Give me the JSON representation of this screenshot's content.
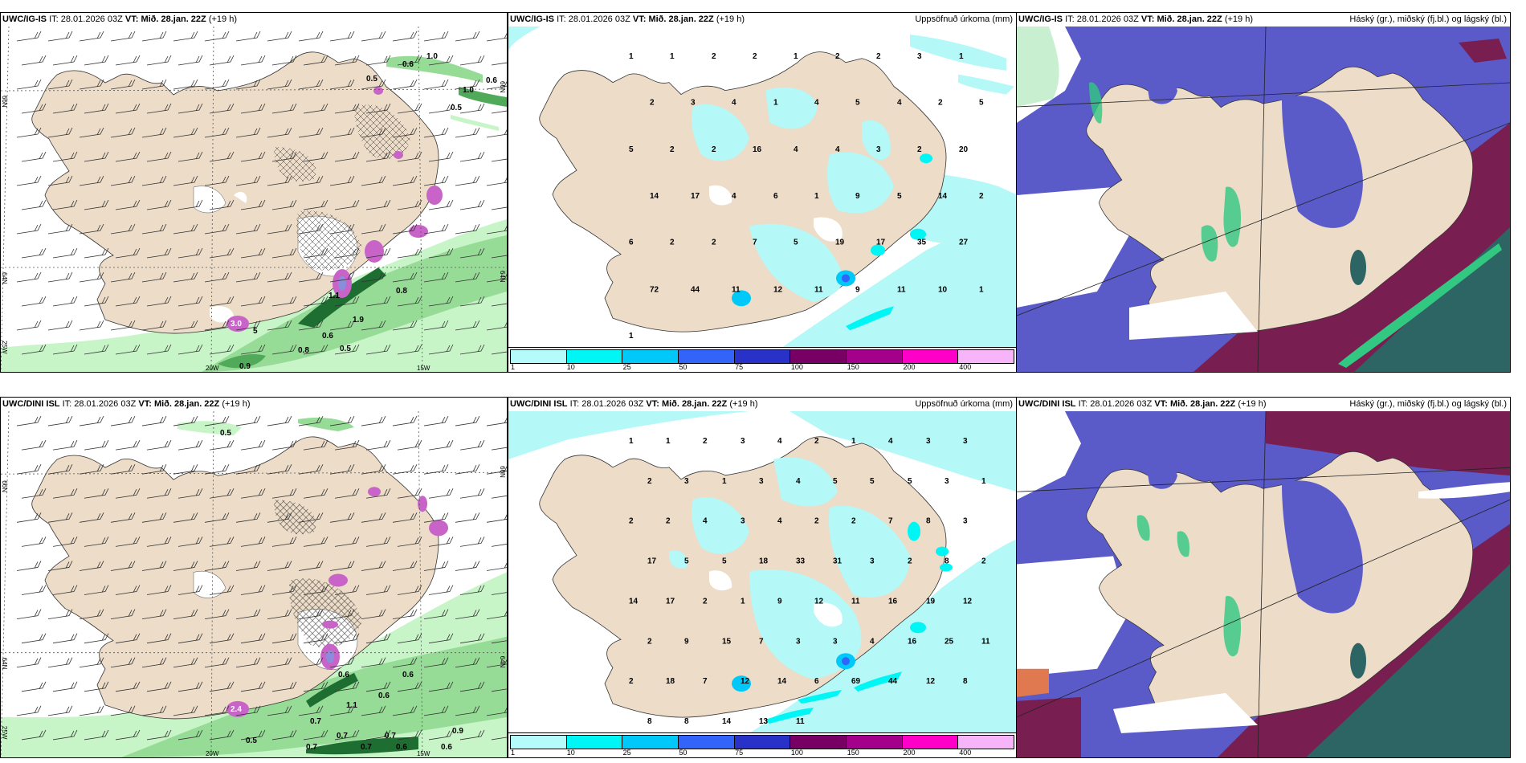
{
  "panels": [
    {
      "id": "top-left",
      "model": "UWC/IG-IS",
      "it_label": "IT:",
      "it_value": "28.01.2026 03Z",
      "vt_label": "VT:",
      "vt_value": "Mið. 28.jan. 22Z",
      "lead": "(+19 h)",
      "field": "",
      "axis_labels": {
        "lat66": "66N",
        "lat64": "64N",
        "lon25": "25W",
        "lon20": "20W",
        "lon15": "15W",
        "lat66r": "66N",
        "lat64r": "64N"
      },
      "contour_labels": [
        "0.6",
        "1.0",
        "0.5",
        "1.0",
        "0.6",
        "0.5",
        "0.8",
        "1.9",
        "0.6",
        "0.5",
        "0.8",
        "0.9",
        "3.0",
        "1.1",
        "5"
      ]
    },
    {
      "id": "top-middle",
      "model": "UWC/IG-IS",
      "it_label": "IT:",
      "it_value": "28.01.2026 03Z",
      "vt_label": "VT:",
      "vt_value": "Mið. 28.jan. 22Z",
      "lead": "(+19 h)",
      "field": "Uppsöfnuð úrkoma (mm)",
      "values": [
        "1",
        "1",
        "2",
        "2",
        "1",
        "2",
        "2",
        "3",
        "1",
        "2",
        "3",
        "4",
        "1",
        "4",
        "5",
        "4",
        "2",
        "5",
        "5",
        "2",
        "2",
        "16",
        "4",
        "4",
        "3",
        "2",
        "20",
        "14",
        "17",
        "4",
        "6",
        "1",
        "9",
        "5",
        "14",
        "2",
        "6",
        "2",
        "2",
        "7",
        "5",
        "19",
        "17",
        "35",
        "27",
        "72",
        "44",
        "11",
        "12",
        "11",
        "9",
        "11",
        "10",
        "1",
        "1"
      ]
    },
    {
      "id": "top-right",
      "model": "UWC/IG-IS",
      "it_label": "IT:",
      "it_value": "28.01.2026 03Z",
      "vt_label": "VT:",
      "vt_value": "Mið. 28.jan. 22Z",
      "lead": "(+19 h)",
      "field": "Háský (gr.), miðský (fj.bl.) og lágský (bl.)"
    },
    {
      "id": "bottom-left",
      "model": "UWC/DINI ISL",
      "it_label": "IT:",
      "it_value": "28.01.2026 03Z",
      "vt_label": "VT:",
      "vt_value": "Mið. 28.jan. 22Z",
      "lead": "(+19 h)",
      "field": "",
      "axis_labels": {
        "lat66": "66N",
        "lat64": "64N",
        "lon25": "25W",
        "lon20": "20W",
        "lon15": "15W",
        "lat66r": "66N",
        "lat64r": "64N"
      },
      "contour_labels": [
        "0.5",
        "0.6",
        "0.6",
        "1.1",
        "0.6",
        "0.7",
        "0.5",
        "0.7",
        "0.7",
        "0.7",
        "0.7",
        "0.6",
        "0.6",
        "0.9",
        "2.4"
      ]
    },
    {
      "id": "bottom-middle",
      "model": "UWC/DINI ISL",
      "it_label": "IT:",
      "it_value": "28.01.2026 03Z",
      "vt_label": "VT:",
      "vt_value": "Mið. 28.jan. 22Z",
      "lead": "(+19 h)",
      "field": "Uppsöfnuð úrkoma (mm)",
      "values": [
        "1",
        "1",
        "2",
        "3",
        "4",
        "2",
        "1",
        "4",
        "3",
        "3",
        "2",
        "3",
        "1",
        "3",
        "4",
        "5",
        "5",
        "5",
        "3",
        "1",
        "2",
        "2",
        "4",
        "3",
        "4",
        "2",
        "2",
        "7",
        "8",
        "3",
        "17",
        "5",
        "5",
        "18",
        "33",
        "31",
        "3",
        "2",
        "8",
        "2",
        "14",
        "17",
        "2",
        "1",
        "9",
        "12",
        "11",
        "16",
        "19",
        "12",
        "2",
        "9",
        "15",
        "7",
        "3",
        "3",
        "4",
        "16",
        "25",
        "11",
        "2",
        "18",
        "7",
        "12",
        "14",
        "6",
        "69",
        "44",
        "12",
        "8",
        "8",
        "8",
        "14",
        "13",
        "11"
      ]
    },
    {
      "id": "bottom-right",
      "model": "UWC/DINI ISL",
      "it_label": "IT:",
      "it_value": "28.01.2026 03Z",
      "vt_label": "VT:",
      "vt_value": "Mið. 28.jan. 22Z",
      "lead": "(+19 h)",
      "field": "Háský (gr.), miðský (fj.bl.) og lágský (bl.)"
    }
  ],
  "colorbar": {
    "ticks": [
      "1",
      "10",
      "25",
      "50",
      "75",
      "100",
      "150",
      "200",
      "400"
    ],
    "colors": [
      "#b3fcfb",
      "#00f5f5",
      "#00c8f8",
      "#3264fa",
      "#2832c8",
      "#780064",
      "#a5008c",
      "#ff00c8",
      "#f8b4f8"
    ]
  },
  "colors": {
    "land": "#ecdcc8",
    "land_precip": "#fcefe3",
    "precip_light": "#b4f8f8",
    "green1": "#c8f5c8",
    "green2": "#96dc96",
    "green3": "#50aa5a",
    "green4": "#1e6e32",
    "purple": "#c864c8",
    "cloud_low": "#5a5ac8",
    "cloud_mid": "#781e50",
    "cloud_high": "#2d6464",
    "cloud_green": "#32c882"
  }
}
